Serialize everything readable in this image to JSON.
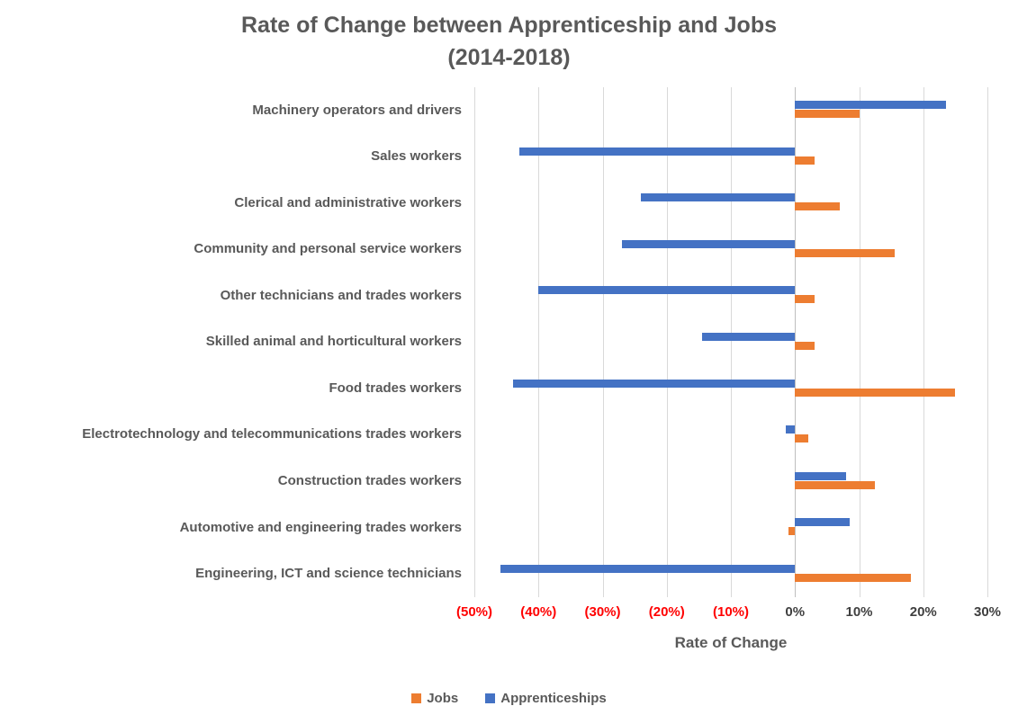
{
  "title": {
    "line1": "Rate of Change between Apprenticeship and Jobs",
    "line2": "(2014-2018)"
  },
  "chart_data": {
    "type": "bar",
    "orientation": "horizontal",
    "title": "Rate of Change between Apprenticeship and Jobs (2014-2018)",
    "xlabel": "Rate of Change",
    "ylabel": "",
    "xlim": [
      -50,
      30
    ],
    "xticks": [
      -50,
      -40,
      -30,
      -20,
      -10,
      0,
      10,
      20,
      30
    ],
    "xtick_labels": [
      "(50%)",
      "(40%)",
      "(30%)",
      "(20%)",
      "(10%)",
      "0%",
      "10%",
      "20%",
      "30%"
    ],
    "negative_tick_color": "#FF0000",
    "positive_tick_color": "#3F3F3F",
    "grid": true,
    "gridline_color": "#D9D9D9",
    "legend_position": "bottom",
    "categories": [
      "Machinery operators and drivers",
      "Sales workers",
      "Clerical and administrative workers",
      "Community and personal service workers",
      "Other technicians and trades workers",
      "Skilled animal and horticultural workers",
      "Food trades workers",
      "Electrotechnology and telecommunications trades workers",
      "Construction trades workers",
      "Automotive and engineering trades workers",
      "Engineering, ICT and science technicians"
    ],
    "series": [
      {
        "name": "Jobs",
        "color": "#ED7D31",
        "values": [
          10,
          3,
          7,
          15.5,
          3,
          3,
          25,
          2,
          12.5,
          -1,
          18
        ]
      },
      {
        "name": "Apprenticeships",
        "color": "#4472C4",
        "values": [
          23.5,
          -43,
          -24,
          -27,
          -40,
          -14.5,
          -44,
          -1.5,
          8,
          8.5,
          -46
        ]
      }
    ]
  }
}
